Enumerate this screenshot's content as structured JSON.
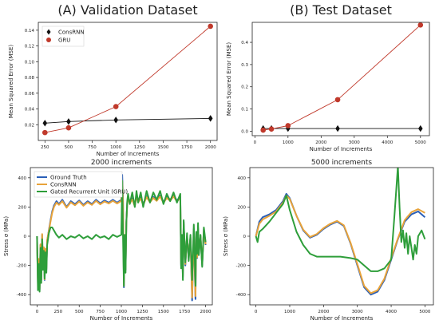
{
  "chart_data": [
    {
      "type": "line",
      "title": "(A) Validation Dataset",
      "xlabel": "Number of Increments",
      "ylabel": "Mean Squared Error (MSE)",
      "xlim": [
        180,
        2070
      ],
      "ylim": [
        0.0,
        0.15
      ],
      "xticks": [
        250,
        500,
        750,
        1000,
        1250,
        1500,
        1750,
        2000
      ],
      "yticks": [
        0.02,
        0.04,
        0.06,
        0.08,
        0.1,
        0.12,
        0.14
      ],
      "tick_decimals": 2,
      "legend_position": "top-left",
      "series": [
        {
          "name": "ConsRNN",
          "color": "#111111",
          "marker": "diamond",
          "x": [
            250,
            500,
            1000,
            2000
          ],
          "y": [
            0.022,
            0.024,
            0.026,
            0.028
          ]
        },
        {
          "name": "GRU",
          "color": "#c0392b",
          "marker": "circle",
          "x": [
            250,
            500,
            1000,
            2000
          ],
          "y": [
            0.01,
            0.016,
            0.043,
            0.145
          ]
        }
      ]
    },
    {
      "type": "line",
      "title": "(B) Test Dataset",
      "xlabel": "Number of Increments",
      "ylabel": "Mean Squared Error (MSE)",
      "xlim": [
        -80,
        5270
      ],
      "ylim": [
        -0.02,
        0.49
      ],
      "xticks": [
        0,
        1000,
        2000,
        3000,
        4000,
        5000
      ],
      "yticks": [
        0.0,
        0.1,
        0.2,
        0.3,
        0.4
      ],
      "tick_decimals": 1,
      "series": [
        {
          "name": "ConsRNN",
          "color": "#111111",
          "marker": "diamond",
          "x": [
            250,
            500,
            1000,
            2500,
            5000
          ],
          "y": [
            0.012,
            0.012,
            0.012,
            0.012,
            0.012
          ]
        },
        {
          "name": "GRU",
          "color": "#c0392b",
          "marker": "circle",
          "x": [
            250,
            500,
            1000,
            2500,
            5000
          ],
          "y": [
            0.005,
            0.01,
            0.025,
            0.142,
            0.478
          ]
        }
      ]
    },
    {
      "type": "line",
      "title": "2000 increments",
      "xlabel": "Number of Increments",
      "ylabel": "Stress σ (MPa)",
      "xlim": [
        -80,
        2080
      ],
      "ylim": [
        -470,
        470
      ],
      "xticks": [
        0,
        250,
        500,
        750,
        1000,
        1250,
        1500,
        1750,
        2000
      ],
      "yticks": [
        -400,
        -200,
        0,
        200,
        400
      ],
      "tick_decimals": 0,
      "legend_position": "top-left",
      "series": [
        {
          "name": "Ground Truth",
          "color": "#2a5fb8",
          "x": [
            0,
            10,
            20,
            30,
            40,
            50,
            60,
            70,
            80,
            90,
            100,
            110,
            120,
            140,
            160,
            180,
            200,
            230,
            260,
            300,
            350,
            400,
            450,
            500,
            550,
            600,
            650,
            700,
            750,
            800,
            850,
            900,
            950,
            1000,
            1010,
            1020,
            1030,
            1040,
            1050,
            1060,
            1070,
            1080,
            1100,
            1130,
            1160,
            1180,
            1200,
            1230,
            1260,
            1300,
            1340,
            1380,
            1420,
            1460,
            1500,
            1540,
            1580,
            1620,
            1660,
            1700,
            1710,
            1720,
            1730,
            1740,
            1760,
            1780,
            1800,
            1820,
            1840,
            1860,
            1880,
            1890,
            1900,
            1910,
            1920,
            1940,
            1960,
            1980,
            2000
          ],
          "y": [
            0,
            -330,
            -160,
            -370,
            -60,
            -300,
            10,
            -200,
            -80,
            -300,
            -90,
            -230,
            -30,
            40,
            110,
            170,
            210,
            240,
            220,
            250,
            200,
            240,
            220,
            245,
            215,
            240,
            220,
            250,
            225,
            245,
            230,
            250,
            230,
            250,
            420,
            250,
            -350,
            0,
            -230,
            100,
            230,
            270,
            230,
            260,
            210,
            280,
            240,
            265,
            220,
            275,
            240,
            270,
            250,
            280,
            235,
            270,
            250,
            280,
            245,
            270,
            -200,
            0,
            -280,
            100,
            -200,
            0,
            -150,
            -10,
            -440,
            50,
            -430,
            20,
            -150,
            60,
            -120,
            0,
            -200,
            50,
            -60
          ]
        },
        {
          "name": "ConsRNN",
          "color": "#e8a33a",
          "x": [
            0,
            10,
            20,
            30,
            40,
            50,
            60,
            70,
            80,
            90,
            100,
            110,
            120,
            140,
            160,
            180,
            200,
            230,
            260,
            300,
            350,
            400,
            450,
            500,
            550,
            600,
            650,
            700,
            750,
            800,
            850,
            900,
            950,
            1000,
            1010,
            1020,
            1030,
            1040,
            1050,
            1060,
            1070,
            1080,
            1100,
            1130,
            1160,
            1180,
            1200,
            1230,
            1260,
            1300,
            1340,
            1380,
            1420,
            1460,
            1500,
            1540,
            1580,
            1620,
            1660,
            1700,
            1710,
            1720,
            1730,
            1740,
            1760,
            1780,
            1800,
            1820,
            1840,
            1860,
            1880,
            1890,
            1900,
            1910,
            1920,
            1940,
            1960,
            1980,
            2000
          ],
          "y": [
            0,
            -325,
            -155,
            -360,
            -55,
            -295,
            15,
            -195,
            -75,
            -295,
            -85,
            -225,
            -25,
            35,
            100,
            160,
            200,
            230,
            215,
            240,
            195,
            232,
            212,
            238,
            208,
            232,
            214,
            242,
            218,
            238,
            224,
            242,
            224,
            242,
            380,
            242,
            -340,
            5,
            -220,
            95,
            222,
            262,
            224,
            252,
            204,
            272,
            232,
            258,
            214,
            268,
            232,
            262,
            242,
            272,
            228,
            262,
            242,
            272,
            238,
            262,
            -190,
            5,
            -270,
            95,
            -190,
            5,
            -145,
            -5,
            -420,
            45,
            -410,
            15,
            -145,
            55,
            -115,
            5,
            -190,
            45,
            -55
          ]
        },
        {
          "name": "Gated Recurrent Unit (GRU)",
          "color": "#2e9e3a",
          "x": [
            0,
            10,
            20,
            30,
            40,
            50,
            60,
            70,
            80,
            90,
            100,
            110,
            120,
            140,
            160,
            180,
            200,
            230,
            260,
            300,
            350,
            400,
            450,
            500,
            550,
            600,
            650,
            700,
            750,
            800,
            850,
            900,
            950,
            1000,
            1010,
            1020,
            1030,
            1040,
            1050,
            1060,
            1070,
            1080,
            1100,
            1130,
            1160,
            1180,
            1200,
            1230,
            1260,
            1300,
            1340,
            1380,
            1420,
            1460,
            1500,
            1540,
            1580,
            1620,
            1660,
            1700,
            1710,
            1720,
            1730,
            1740,
            1760,
            1780,
            1800,
            1820,
            1840,
            1860,
            1880,
            1890,
            1900,
            1910,
            1920,
            1940,
            1960,
            1980,
            2000
          ],
          "y": [
            0,
            -370,
            -190,
            -380,
            -80,
            -320,
            -20,
            -230,
            -100,
            -290,
            -110,
            -250,
            -60,
            20,
            60,
            60,
            40,
            10,
            -10,
            10,
            -20,
            0,
            -10,
            10,
            -15,
            0,
            -20,
            10,
            -10,
            0,
            -20,
            10,
            -5,
            10,
            380,
            0,
            -340,
            10,
            -250,
            90,
            240,
            290,
            220,
            300,
            200,
            310,
            230,
            300,
            200,
            310,
            230,
            300,
            250,
            310,
            220,
            290,
            240,
            300,
            230,
            290,
            -220,
            10,
            -300,
            110,
            -180,
            20,
            -170,
            10,
            -300,
            80,
            -340,
            30,
            -120,
            90,
            -130,
            10,
            -210,
            60,
            -40
          ]
        }
      ]
    },
    {
      "type": "line",
      "title": "5000 increments",
      "xlabel": "Number of Increments",
      "ylabel": "Stress σ (MPa)",
      "xlim": [
        -180,
        5250
      ],
      "ylim": [
        -470,
        470
      ],
      "xticks": [
        0,
        1000,
        2000,
        3000,
        4000,
        5000
      ],
      "yticks": [
        -400,
        -200,
        0,
        200,
        400
      ],
      "tick_decimals": 0,
      "series": [
        {
          "name": "Ground Truth",
          "color": "#2a5fb8",
          "x": [
            0,
            100,
            200,
            400,
            600,
            800,
            900,
            1000,
            1200,
            1400,
            1600,
            1800,
            2000,
            2200,
            2400,
            2600,
            2800,
            3000,
            3200,
            3400,
            3600,
            3800,
            4000,
            4200,
            4400,
            4600,
            4800,
            5000
          ],
          "y": [
            0,
            100,
            130,
            150,
            180,
            240,
            290,
            260,
            140,
            40,
            -10,
            10,
            50,
            80,
            100,
            70,
            -50,
            -200,
            -350,
            -400,
            -380,
            -300,
            -160,
            -20,
            100,
            150,
            170,
            130
          ]
        },
        {
          "name": "ConsRNN",
          "color": "#e8a33a",
          "x": [
            0,
            100,
            200,
            400,
            600,
            800,
            900,
            1000,
            1200,
            1400,
            1600,
            1800,
            2000,
            2200,
            2400,
            2600,
            2800,
            3000,
            3200,
            3400,
            3600,
            3800,
            4000,
            4200,
            4400,
            4600,
            4800,
            5000
          ],
          "y": [
            0,
            85,
            115,
            140,
            170,
            230,
            280,
            255,
            140,
            45,
            -5,
            15,
            55,
            85,
            105,
            75,
            -45,
            -190,
            -340,
            -390,
            -370,
            -290,
            -150,
            -15,
            110,
            165,
            185,
            160
          ]
        },
        {
          "name": "Gated Recurrent Unit (GRU)",
          "color": "#2e9e3a",
          "x": [
            0,
            50,
            100,
            200,
            400,
            600,
            800,
            900,
            1000,
            1200,
            1400,
            1600,
            1800,
            2000,
            2200,
            2500,
            2800,
            3000,
            3200,
            3400,
            3600,
            3800,
            4000,
            4100,
            4200,
            4250,
            4300,
            4350,
            4400,
            4450,
            4500,
            4550,
            4600,
            4650,
            4700,
            4750,
            4800,
            4900,
            5000
          ],
          "y": [
            0,
            -40,
            30,
            50,
            100,
            160,
            220,
            280,
            180,
            30,
            -60,
            -120,
            -140,
            -140,
            -140,
            -140,
            -150,
            -160,
            -200,
            -240,
            -240,
            -220,
            -160,
            150,
            480,
            200,
            -40,
            40,
            -80,
            20,
            -120,
            0,
            -80,
            -160,
            -60,
            -120,
            0,
            40,
            -20
          ]
        }
      ]
    }
  ]
}
